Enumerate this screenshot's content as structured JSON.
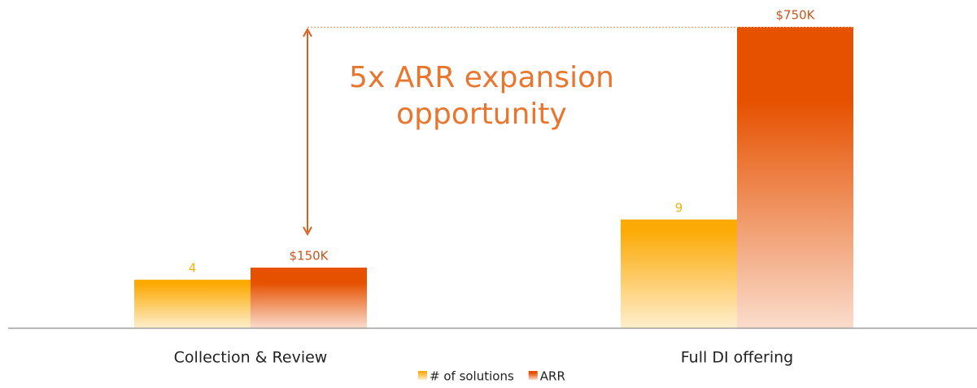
{
  "chart_data": {
    "type": "bar",
    "categories": [
      "Collection & Review",
      "Full DI offering"
    ],
    "series": [
      {
        "name": "# of solutions",
        "color": "#fcaa05",
        "values": [
          4,
          9
        ]
      },
      {
        "name": "ARR",
        "color": "#e65100",
        "values": [
          150000,
          750000
        ],
        "value_labels": [
          "$150K",
          "$750K"
        ],
        "axis": "y2"
      }
    ],
    "ylim": [
      0,
      25
    ],
    "y2lim": [
      0,
      750000
    ],
    "annotation": [
      "5x ARR expansion",
      "opportunity"
    ],
    "legend": "bottom"
  }
}
